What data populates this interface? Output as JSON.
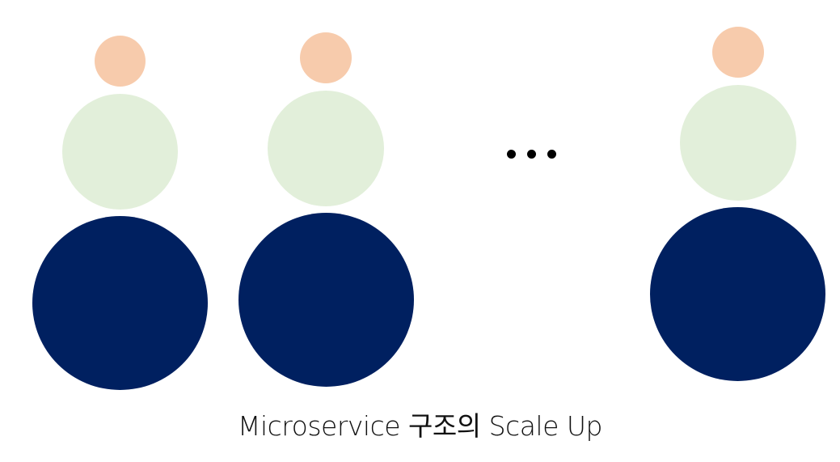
{
  "caption": "Microservice 구조의 Scale Up",
  "colors": {
    "small": "#F7CBAC",
    "medium": "#E2EFDA",
    "large": "#002060",
    "ellipsis": "#000000"
  },
  "ellipsis_symbol": "..."
}
